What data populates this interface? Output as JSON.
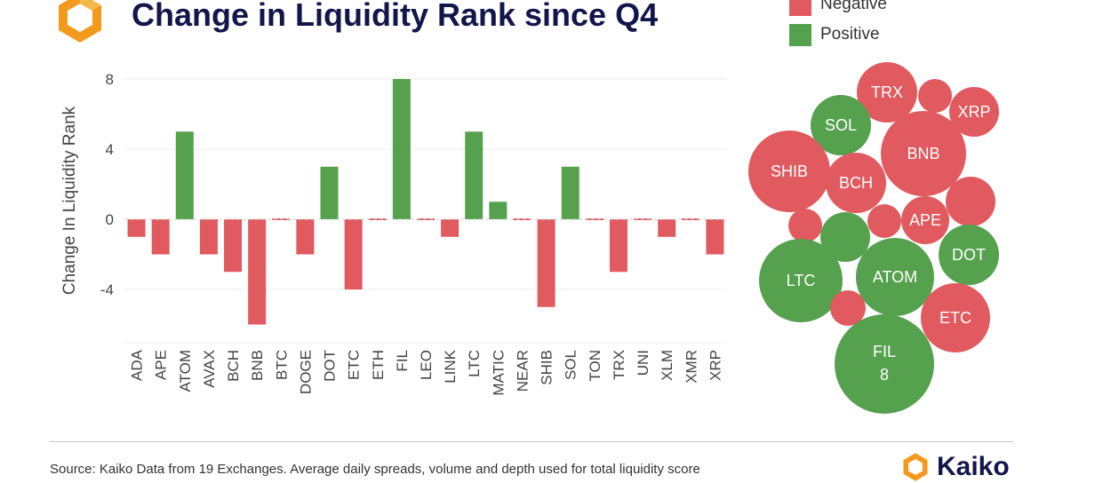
{
  "header": {
    "title": "Change in Liquidity Rank since Q4"
  },
  "legend": [
    {
      "label": "Negative",
      "color": "#e05a5f"
    },
    {
      "label": "Positive",
      "color": "#55a14e"
    }
  ],
  "colors": {
    "negative": "#e05a5f",
    "positive": "#55a14e",
    "brand_orange": "#f39a1e",
    "brand_navy": "#13164a"
  },
  "footer": {
    "source": "Source: Kaiko Data from 19 Exchanges. Average daily spreads, volume and depth used for total liquidity score",
    "brand": "Kaiko"
  },
  "chart_data": [
    {
      "type": "bar",
      "ylabel": "Change In Liquidity Rank",
      "xlabel": "",
      "categories": [
        "ADA",
        "APE",
        "ATOM",
        "AVAX",
        "BCH",
        "BNB",
        "BTC",
        "DOGE",
        "DOT",
        "ETC",
        "ETH",
        "FIL",
        "LEO",
        "LINK",
        "LTC",
        "MATIC",
        "NEAR",
        "SHIB",
        "SOL",
        "TON",
        "TRX",
        "UNI",
        "XLM",
        "XMR",
        "XRP"
      ],
      "values": [
        -1,
        -2,
        5,
        -2,
        -3,
        -6,
        0,
        -2,
        3,
        -4,
        0,
        8,
        0,
        -1,
        5,
        1,
        0,
        -5,
        3,
        0,
        -3,
        0,
        -1,
        0,
        -2
      ],
      "yticks": [
        8,
        4,
        0,
        -4
      ],
      "ylim": [
        -6.9,
        8.8
      ],
      "grid": true
    },
    {
      "type": "bubble",
      "bubbles": [
        {
          "label": "TRX",
          "sign": "negative"
        },
        {
          "label": "",
          "sign": "negative"
        },
        {
          "label": "XRP",
          "sign": "negative"
        },
        {
          "label": "SOL",
          "sign": "positive"
        },
        {
          "label": "BNB",
          "sign": "negative"
        },
        {
          "label": "SHIB",
          "sign": "negative"
        },
        {
          "label": "BCH",
          "sign": "negative"
        },
        {
          "label": "",
          "sign": "negative"
        },
        {
          "label": "",
          "sign": "positive"
        },
        {
          "label": "",
          "sign": "negative"
        },
        {
          "label": "",
          "sign": "negative"
        },
        {
          "label": "APE",
          "sign": "negative"
        },
        {
          "label": "DOT",
          "sign": "positive"
        },
        {
          "label": "LTC",
          "sign": "positive"
        },
        {
          "label": "ATOM",
          "sign": "positive"
        },
        {
          "label": "",
          "sign": "negative"
        },
        {
          "label": "ETC",
          "sign": "negative"
        },
        {
          "label": "FIL",
          "value_label": "8",
          "sign": "positive"
        }
      ]
    }
  ]
}
